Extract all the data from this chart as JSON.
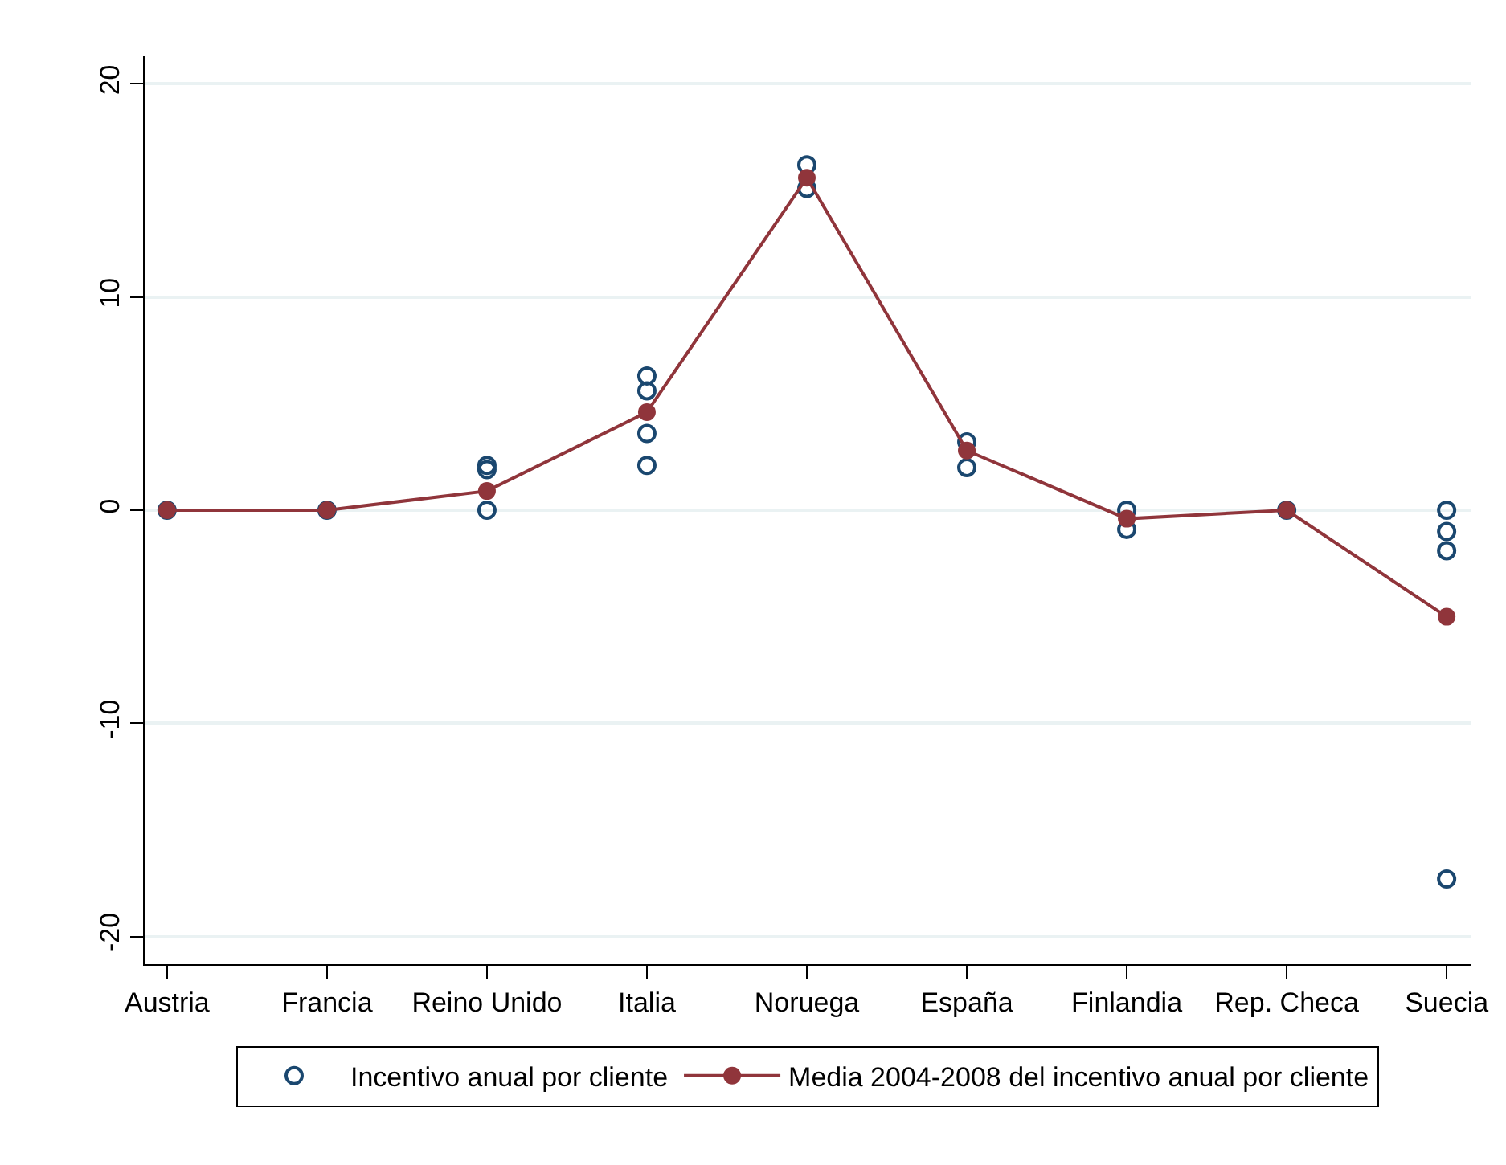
{
  "chart_data": {
    "type": "line",
    "categories": [
      "Austria",
      "Francia",
      "Reino Unido",
      "Italia",
      "Noruega",
      "España",
      "Finlandia",
      "Rep. Checa",
      "Suecia"
    ],
    "series": [
      {
        "name": "Incentivo anual por cliente",
        "type": "scatter",
        "marker": "circle",
        "color": "#1a476f",
        "x": [
          "Austria",
          "Francia",
          "Reino Unido",
          "Reino Unido",
          "Reino Unido",
          "Reino Unido",
          "Italia",
          "Italia",
          "Italia",
          "Italia",
          "Italia",
          "Noruega",
          "Noruega",
          "España",
          "España",
          "Finlandia",
          "Finlandia",
          "Rep. Checa",
          "Suecia",
          "Suecia",
          "Suecia",
          "Suecia"
        ],
        "values": [
          0,
          0,
          2.1,
          1.9,
          0,
          null,
          6.3,
          5.6,
          null,
          3.6,
          2.1,
          16.2,
          15.1,
          3.2,
          2.0,
          0,
          -0.9,
          0,
          0,
          -1,
          -1.9,
          -17.3
        ]
      },
      {
        "name": "Media 2004-2008 del incentivo anual por cliente",
        "type": "line",
        "marker": "circle",
        "line_style": "solid",
        "color": "#90353b",
        "values": [
          0,
          0,
          0.9,
          4.6,
          15.6,
          2.8,
          -0.4,
          0,
          -5
        ]
      }
    ],
    "ylim": [
      -21.3,
      21.3
    ],
    "yticks": [
      {
        "value": -20,
        "label": "-20"
      },
      {
        "value": -10,
        "label": "-10"
      },
      0,
      10,
      20
    ],
    "grid": "y",
    "legend": "bottom"
  }
}
